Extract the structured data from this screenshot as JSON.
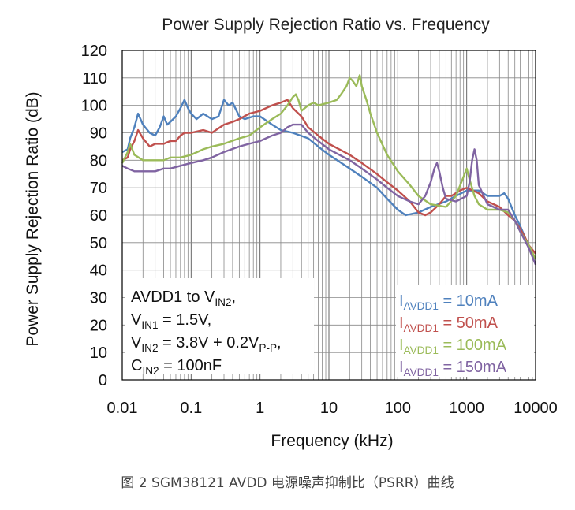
{
  "caption": "图 2 SGM38121 AVDD 电源噪声抑制比（PSRR）曲线",
  "chart_data": {
    "type": "line",
    "title": "Power Supply Rejection Ratio vs. Frequency",
    "xlabel": "Frequency (kHz)",
    "ylabel": "Power Supply Rejection Ratio (dB)",
    "x_scale": "log",
    "xlim": [
      0.01,
      10000
    ],
    "ylim": [
      0,
      120
    ],
    "x_ticks": [
      "0.01",
      "0.1",
      "1",
      "10",
      "100",
      "1000",
      "10000"
    ],
    "y_ticks": [
      "0",
      "10",
      "20",
      "30",
      "40",
      "50",
      "60",
      "70",
      "80",
      "90",
      "100",
      "110",
      "120"
    ],
    "grid": true,
    "conditions": [
      {
        "parts": [
          [
            "AVDD1 to V",
            ""
          ],
          [
            "IN2",
            "sub"
          ],
          [
            ",",
            ""
          ]
        ]
      },
      {
        "parts": [
          [
            "V",
            ""
          ],
          [
            "IN1",
            "sub"
          ],
          [
            " = 1.5V,",
            ""
          ]
        ]
      },
      {
        "parts": [
          [
            "V",
            ""
          ],
          [
            "IN2",
            "sub"
          ],
          [
            " = 3.8V + 0.2V",
            ""
          ],
          [
            "P-P",
            "sub"
          ],
          [
            ",",
            ""
          ]
        ]
      },
      {
        "parts": [
          [
            "C",
            ""
          ],
          [
            "IN2",
            "sub"
          ],
          [
            " = 100nF",
            ""
          ]
        ]
      }
    ],
    "legend_position": "bottom-right",
    "series": [
      {
        "legend": [
          [
            "I",
            ""
          ],
          [
            "AVDD1",
            "sub"
          ],
          [
            " = 10mA",
            ""
          ]
        ],
        "color": "#4f81bd",
        "points": [
          [
            0.01,
            83
          ],
          [
            0.012,
            84
          ],
          [
            0.013,
            88
          ],
          [
            0.015,
            92
          ],
          [
            0.017,
            97
          ],
          [
            0.02,
            93
          ],
          [
            0.025,
            90
          ],
          [
            0.03,
            89
          ],
          [
            0.035,
            92
          ],
          [
            0.04,
            96
          ],
          [
            0.045,
            93
          ],
          [
            0.05,
            94
          ],
          [
            0.06,
            96
          ],
          [
            0.07,
            99
          ],
          [
            0.08,
            102
          ],
          [
            0.09,
            99
          ],
          [
            0.1,
            97
          ],
          [
            0.12,
            95
          ],
          [
            0.15,
            97
          ],
          [
            0.2,
            95
          ],
          [
            0.25,
            96
          ],
          [
            0.3,
            102
          ],
          [
            0.35,
            100
          ],
          [
            0.4,
            101
          ],
          [
            0.5,
            96
          ],
          [
            0.6,
            95
          ],
          [
            0.8,
            96
          ],
          [
            1,
            96
          ],
          [
            1.5,
            93
          ],
          [
            2,
            91
          ],
          [
            3,
            90
          ],
          [
            5,
            88
          ],
          [
            7,
            85
          ],
          [
            10,
            82
          ],
          [
            20,
            77
          ],
          [
            30,
            74
          ],
          [
            50,
            70
          ],
          [
            70,
            66
          ],
          [
            100,
            62
          ],
          [
            130,
            60
          ],
          [
            200,
            61
          ],
          [
            300,
            63
          ],
          [
            500,
            65
          ],
          [
            700,
            67
          ],
          [
            1000,
            69
          ],
          [
            1500,
            69
          ],
          [
            2000,
            67
          ],
          [
            3000,
            67
          ],
          [
            3500,
            68
          ],
          [
            4000,
            66
          ],
          [
            5000,
            60
          ],
          [
            6000,
            56
          ],
          [
            7000,
            52
          ],
          [
            8000,
            48
          ],
          [
            10000,
            44
          ]
        ]
      },
      {
        "legend": [
          [
            "I",
            ""
          ],
          [
            "AVDD1",
            "sub"
          ],
          [
            " = 50mA",
            ""
          ]
        ],
        "color": "#c0504d",
        "points": [
          [
            0.01,
            80
          ],
          [
            0.012,
            81
          ],
          [
            0.013,
            84
          ],
          [
            0.015,
            87
          ],
          [
            0.017,
            91
          ],
          [
            0.02,
            88
          ],
          [
            0.025,
            85
          ],
          [
            0.03,
            86
          ],
          [
            0.04,
            86
          ],
          [
            0.05,
            87
          ],
          [
            0.06,
            87
          ],
          [
            0.07,
            89
          ],
          [
            0.08,
            90
          ],
          [
            0.1,
            90
          ],
          [
            0.15,
            91
          ],
          [
            0.2,
            90
          ],
          [
            0.3,
            93
          ],
          [
            0.4,
            94
          ],
          [
            0.5,
            95
          ],
          [
            0.7,
            97
          ],
          [
            1,
            98
          ],
          [
            1.5,
            100
          ],
          [
            2,
            101
          ],
          [
            2.5,
            102
          ],
          [
            3,
            99
          ],
          [
            4,
            96
          ],
          [
            5,
            92
          ],
          [
            7,
            89
          ],
          [
            10,
            86
          ],
          [
            20,
            82
          ],
          [
            30,
            79
          ],
          [
            50,
            75
          ],
          [
            70,
            72
          ],
          [
            100,
            69
          ],
          [
            150,
            65
          ],
          [
            200,
            61
          ],
          [
            250,
            60
          ],
          [
            300,
            61
          ],
          [
            400,
            64
          ],
          [
            500,
            67
          ],
          [
            600,
            67
          ],
          [
            800,
            69
          ],
          [
            1000,
            70
          ],
          [
            1500,
            68
          ],
          [
            2000,
            65
          ],
          [
            3000,
            63
          ],
          [
            4000,
            60
          ],
          [
            5000,
            58
          ],
          [
            6000,
            55
          ],
          [
            7000,
            52
          ],
          [
            8000,
            49
          ],
          [
            10000,
            46
          ]
        ]
      },
      {
        "legend": [
          [
            "I",
            ""
          ],
          [
            "AVDD1",
            "sub"
          ],
          [
            " = 100mA",
            ""
          ]
        ],
        "color": "#9bbb59",
        "points": [
          [
            0.01,
            79
          ],
          [
            0.012,
            83
          ],
          [
            0.013,
            86
          ],
          [
            0.015,
            82
          ],
          [
            0.02,
            80
          ],
          [
            0.03,
            80
          ],
          [
            0.04,
            80
          ],
          [
            0.05,
            81
          ],
          [
            0.07,
            81
          ],
          [
            0.1,
            82
          ],
          [
            0.15,
            84
          ],
          [
            0.2,
            85
          ],
          [
            0.3,
            86
          ],
          [
            0.5,
            88
          ],
          [
            0.7,
            89
          ],
          [
            1,
            92
          ],
          [
            1.5,
            95
          ],
          [
            2,
            97
          ],
          [
            2.5,
            100
          ],
          [
            3,
            103
          ],
          [
            3.3,
            104
          ],
          [
            3.6,
            102
          ],
          [
            4,
            98
          ],
          [
            5,
            100
          ],
          [
            6,
            101
          ],
          [
            7,
            100
          ],
          [
            10,
            101
          ],
          [
            13,
            102
          ],
          [
            15,
            104
          ],
          [
            18,
            107
          ],
          [
            20,
            110
          ],
          [
            22,
            109
          ],
          [
            25,
            107
          ],
          [
            28,
            111
          ],
          [
            30,
            107
          ],
          [
            35,
            102
          ],
          [
            40,
            97
          ],
          [
            50,
            90
          ],
          [
            70,
            82
          ],
          [
            100,
            76
          ],
          [
            150,
            71
          ],
          [
            200,
            67
          ],
          [
            300,
            64
          ],
          [
            500,
            63
          ],
          [
            700,
            67
          ],
          [
            900,
            74
          ],
          [
            1000,
            77
          ],
          [
            1100,
            73
          ],
          [
            1300,
            67
          ],
          [
            1500,
            64
          ],
          [
            2000,
            62
          ],
          [
            3000,
            62
          ],
          [
            4000,
            61
          ],
          [
            5000,
            58
          ],
          [
            6000,
            54
          ],
          [
            8000,
            49
          ],
          [
            10000,
            44
          ]
        ]
      },
      {
        "legend": [
          [
            "I",
            ""
          ],
          [
            "AVDD1",
            "sub"
          ],
          [
            " = 150mA",
            ""
          ]
        ],
        "color": "#8064a2",
        "points": [
          [
            0.01,
            78
          ],
          [
            0.012,
            77
          ],
          [
            0.015,
            76
          ],
          [
            0.02,
            76
          ],
          [
            0.03,
            76
          ],
          [
            0.04,
            77
          ],
          [
            0.05,
            77
          ],
          [
            0.07,
            78
          ],
          [
            0.1,
            79
          ],
          [
            0.15,
            80
          ],
          [
            0.2,
            81
          ],
          [
            0.3,
            83
          ],
          [
            0.5,
            85
          ],
          [
            0.7,
            86
          ],
          [
            1,
            87
          ],
          [
            1.5,
            89
          ],
          [
            2,
            90
          ],
          [
            2.5,
            92
          ],
          [
            3,
            93
          ],
          [
            4,
            93
          ],
          [
            5,
            90
          ],
          [
            7,
            87
          ],
          [
            10,
            84
          ],
          [
            20,
            80
          ],
          [
            30,
            77
          ],
          [
            50,
            73
          ],
          [
            70,
            70
          ],
          [
            100,
            67
          ],
          [
            150,
            65
          ],
          [
            200,
            64
          ],
          [
            250,
            67
          ],
          [
            300,
            72
          ],
          [
            340,
            77
          ],
          [
            370,
            79
          ],
          [
            400,
            76
          ],
          [
            450,
            70
          ],
          [
            500,
            66
          ],
          [
            700,
            65
          ],
          [
            1000,
            67
          ],
          [
            1100,
            72
          ],
          [
            1200,
            80
          ],
          [
            1300,
            84
          ],
          [
            1400,
            80
          ],
          [
            1500,
            71
          ],
          [
            2000,
            64
          ],
          [
            3000,
            62
          ],
          [
            4000,
            62
          ],
          [
            5000,
            58
          ],
          [
            6000,
            54
          ],
          [
            8000,
            48
          ],
          [
            10000,
            42
          ]
        ]
      }
    ]
  }
}
